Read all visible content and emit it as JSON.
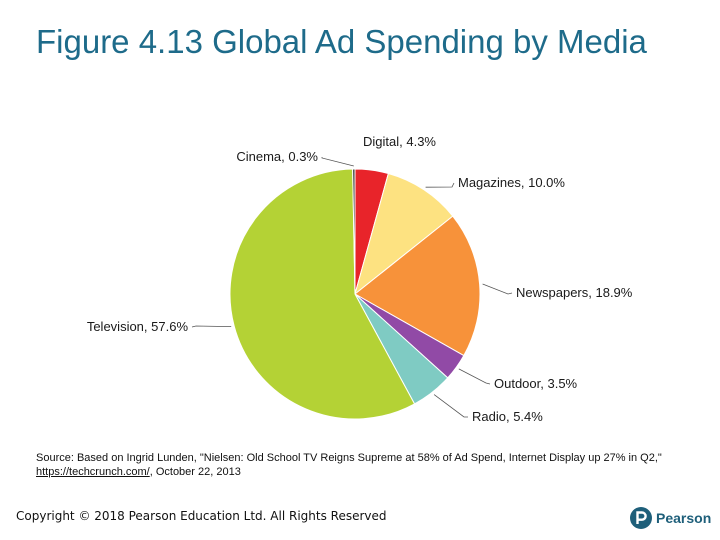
{
  "slide": {
    "title": "Figure 4.13 Global Ad Spending by Media"
  },
  "chart_data": {
    "type": "pie",
    "title": "",
    "unit": "%",
    "slices": [
      {
        "label": "Digital",
        "value": 4.3,
        "display": "Digital, 4.3%",
        "color": "#e8242a"
      },
      {
        "label": "Magazines",
        "value": 10.0,
        "display": "Magazines, 10.0%",
        "color": "#fde281"
      },
      {
        "label": "Newspapers",
        "value": 18.9,
        "display": "Newspapers, 18.9%",
        "color": "#f7923a"
      },
      {
        "label": "Outdoor",
        "value": 3.5,
        "display": "Outdoor, 3.5%",
        "color": "#914aa6"
      },
      {
        "label": "Radio",
        "value": 5.4,
        "display": "Radio, 5.4%",
        "color": "#7fcbc3"
      },
      {
        "label": "Television",
        "value": 57.6,
        "display": "Television, 57.6%",
        "color": "#b4d235"
      },
      {
        "label": "Cinema",
        "value": 0.3,
        "display": "Cinema, 0.3%",
        "color": "#333333"
      }
    ],
    "start_angle_deg": 0,
    "direction": "clockwise",
    "legend": "none"
  },
  "source": {
    "before_link": "Source: Based on Ingrid Lunden, \"Nielsen: Old School TV Reigns Supreme at 58% of Ad Spend, Internet Display up 27% in Q2,\" ",
    "link": "https://techcrunch.com/",
    "after_link": ", October 22, 2013"
  },
  "footer": {
    "copyright": "Copyright © 2018 Pearson Education Ltd. All Rights Reserved",
    "brand": "Pearson",
    "brand_color": "#1e5f7a"
  }
}
